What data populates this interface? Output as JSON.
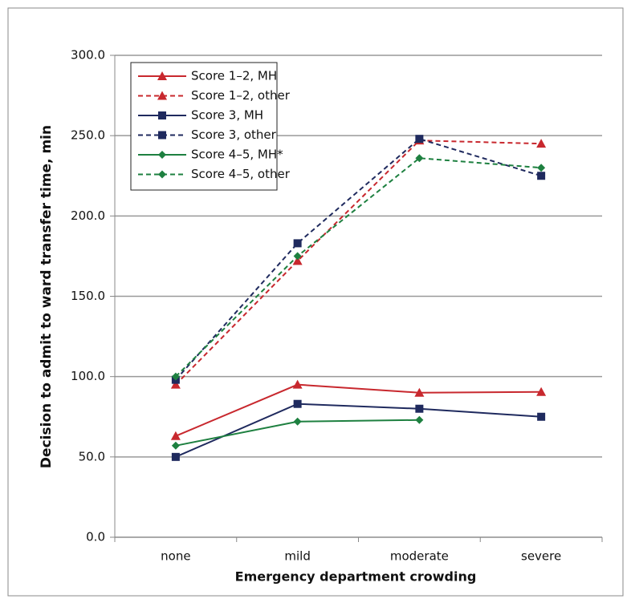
{
  "chart_data": {
    "type": "line",
    "x_label": "Emergency department crowding",
    "y_label": "Decision to admit to ward transfer time, min",
    "categories": [
      "none",
      "mild",
      "moderate",
      "severe"
    ],
    "series": [
      {
        "name": "Score 1–2, MH",
        "color": "#c8282e",
        "dash": false,
        "marker": "triangle",
        "values": [
          63,
          95,
          90,
          90.5
        ]
      },
      {
        "name": "Score 1–2, other",
        "color": "#c8282e",
        "dash": true,
        "marker": "triangle",
        "values": [
          95,
          172,
          247,
          245
        ]
      },
      {
        "name": "Score 3, MH",
        "color": "#1f2a5e",
        "dash": false,
        "marker": "square",
        "values": [
          50,
          83,
          80,
          75
        ]
      },
      {
        "name": "Score 3, other",
        "color": "#1f2a5e",
        "dash": true,
        "marker": "square",
        "values": [
          98,
          183,
          248,
          225
        ]
      },
      {
        "name": "Score 4–5, MH*",
        "color": "#1e8040",
        "dash": false,
        "marker": "diamond",
        "values": [
          57,
          72,
          73,
          null
        ]
      },
      {
        "name": "Score 4–5, other",
        "color": "#1e8040",
        "dash": true,
        "marker": "diamond",
        "values": [
          100,
          175,
          236,
          230
        ]
      }
    ],
    "ylim": [
      0,
      300
    ],
    "yticks": [
      {
        "value": 0,
        "label": "0.0"
      },
      {
        "value": 50,
        "label": "50.0"
      },
      {
        "value": 100,
        "label": "100.0"
      },
      {
        "value": 150,
        "label": "150.0"
      },
      {
        "value": 200,
        "label": "200.0"
      },
      {
        "value": 250,
        "label": "250.0"
      },
      {
        "value": 300,
        "label": "300.0"
      }
    ],
    "grid": true
  }
}
